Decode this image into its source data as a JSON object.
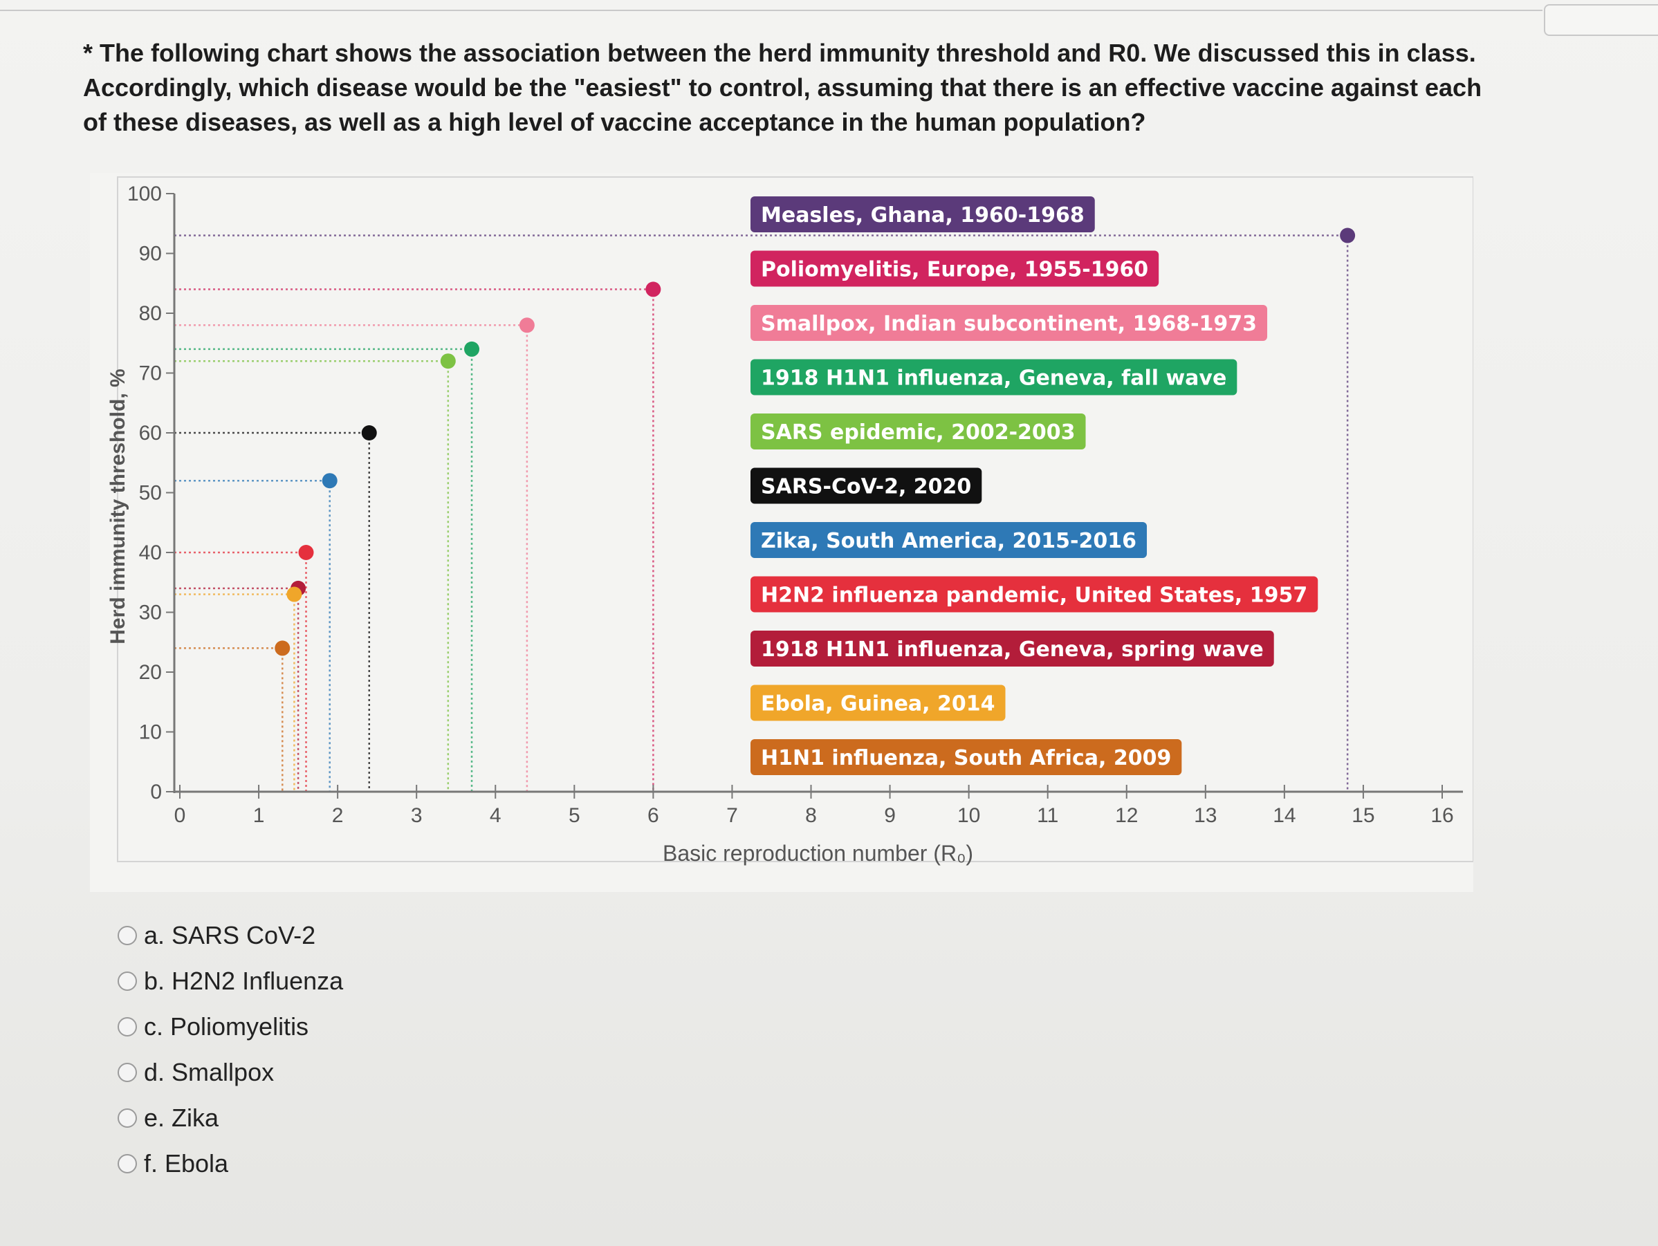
{
  "question": {
    "marker": "*",
    "text": "The following chart shows the association between the herd immunity threshold and R0. We discussed this in class. Accordingly, which disease would be the \"easiest\" to control, assuming that there is an effective vaccine against each of these diseases, as well as a high level of vaccine acceptance in the human population?"
  },
  "chart_data": {
    "type": "scatter",
    "xlabel": "Basic reproduction number (R₀)",
    "ylabel": "Herd immunity threshold, %",
    "xlim": [
      0,
      16
    ],
    "ylim": [
      0,
      100
    ],
    "x_ticks": [
      "0",
      "1",
      "2",
      "3",
      "4",
      "5",
      "6",
      "7",
      "8",
      "9",
      "10",
      "11",
      "12",
      "13",
      "14",
      "15",
      "16"
    ],
    "y_ticks": [
      "0",
      "10",
      "20",
      "30",
      "40",
      "50",
      "60",
      "70",
      "80",
      "90",
      "100"
    ],
    "grid": false,
    "legend_position": "center",
    "series": [
      {
        "name": "Measles, Ghana, 1960-1968",
        "x": 14.8,
        "y": 93,
        "color": "#5b3a7a"
      },
      {
        "name": "Poliomyelitis, Europe, 1955-1960",
        "x": 6.0,
        "y": 84,
        "color": "#d1245f"
      },
      {
        "name": "Smallpox, Indian subcontinent, 1968-1973",
        "x": 4.4,
        "y": 78,
        "color": "#f07c97"
      },
      {
        "name": "1918 H1N1 influenza, Geneva, fall wave",
        "x": 3.7,
        "y": 74,
        "color": "#1fa563"
      },
      {
        "name": "SARS epidemic, 2002-2003",
        "x": 3.4,
        "y": 72,
        "color": "#7dc243"
      },
      {
        "name": "SARS-CoV-2, 2020",
        "x": 2.4,
        "y": 60,
        "color": "#111111"
      },
      {
        "name": "Zika, South America, 2015-2016",
        "x": 1.9,
        "y": 52,
        "color": "#2e79b6"
      },
      {
        "name": "H2N2 influenza pandemic, United States, 1957",
        "x": 1.6,
        "y": 40,
        "color": "#e5303d"
      },
      {
        "name": "1918 H1N1 influenza, Geneva, spring wave",
        "x": 1.5,
        "y": 34,
        "color": "#b31d3a"
      },
      {
        "name": "Ebola, Guinea, 2014",
        "x": 1.45,
        "y": 33,
        "color": "#f0a62a"
      },
      {
        "name": "H1N1 influenza, South Africa, 2009",
        "x": 1.3,
        "y": 24,
        "color": "#cc6b1e"
      }
    ]
  },
  "answers": [
    {
      "label": "a. SARS CoV-2"
    },
    {
      "label": "b. H2N2 Influenza"
    },
    {
      "label": "c. Poliomyelitis"
    },
    {
      "label": "d. Smallpox"
    },
    {
      "label": "e. Zika"
    },
    {
      "label": "f. Ebola"
    }
  ]
}
